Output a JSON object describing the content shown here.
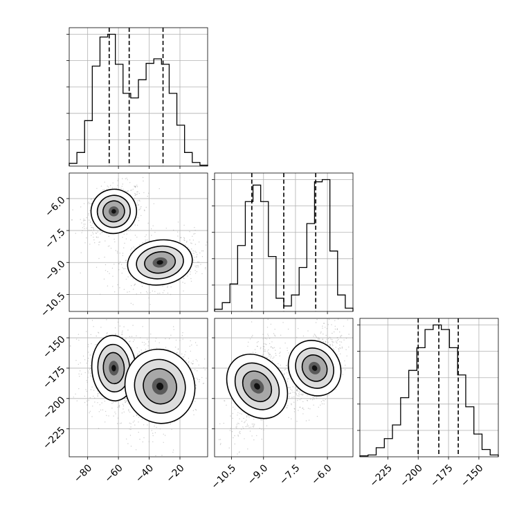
{
  "chart_data": {
    "type": "corner",
    "parameters": [
      {
        "range": [
          -92,
          -2
        ],
        "ticks": [
          -80,
          -60,
          -40,
          -20
        ],
        "tick_labels": [
          "−80",
          "−60",
          "−40",
          "−20"
        ],
        "quantiles": [
          -66,
          -53,
          -31
        ],
        "hist": [
          3,
          15,
          50,
          110,
          142,
          145,
          112,
          80,
          75,
          95,
          113,
          118,
          112,
          80,
          45,
          15,
          4,
          1
        ]
      },
      {
        "range": [
          -11.3,
          -4.8
        ],
        "ticks": [
          -10.5,
          -9.0,
          -7.5,
          -6.0
        ],
        "tick_labels": [
          "−10.5",
          "−9.0",
          "−7.5",
          "−6.0"
        ],
        "quantiles": [
          -9.55,
          -8.05,
          -6.55
        ],
        "hist": [
          2,
          8,
          25,
          60,
          100,
          115,
          100,
          50,
          12,
          5,
          15,
          40,
          80,
          118,
          120,
          55,
          15,
          3
        ]
      },
      {
        "range": [
          -248,
          -134
        ],
        "ticks": [
          -225,
          -200,
          -175,
          -150
        ],
        "tick_labels": [
          "−225",
          "−200",
          "−175",
          "−150"
        ],
        "quantiles": [
          -200,
          -183,
          -167
        ],
        "hist": [
          1,
          2,
          10,
          20,
          35,
          65,
          95,
          120,
          140,
          145,
          140,
          120,
          90,
          55,
          25,
          8,
          2
        ]
      }
    ],
    "pairs": [
      {
        "row": 1,
        "col": 0,
        "clusters": [
          {
            "cx": -63,
            "cy": -6.6,
            "sx": 7.5,
            "sy": 0.5,
            "corr": 0.3,
            "n": 700
          },
          {
            "cx": -33,
            "cy": -9.0,
            "sx": 11,
            "sy": 0.5,
            "corr": 0.25,
            "n": 650
          }
        ]
      },
      {
        "row": 2,
        "col": 0,
        "clusters": [
          {
            "cx": -63,
            "cy": -175,
            "sx": 7.5,
            "sy": 13,
            "corr": 0.05,
            "n": 700
          },
          {
            "cx": -33,
            "cy": -190,
            "sx": 11,
            "sy": 16,
            "corr": 0.35,
            "n": 650
          }
        ]
      },
      {
        "row": 2,
        "col": 1,
        "clusters": [
          {
            "cx": -9.3,
            "cy": -190,
            "sx": 0.5,
            "sy": 16,
            "corr": 0.5,
            "n": 650
          },
          {
            "cx": -6.6,
            "cy": -175,
            "sx": 0.5,
            "sy": 13,
            "corr": 0.5,
            "n": 700
          }
        ]
      }
    ]
  }
}
